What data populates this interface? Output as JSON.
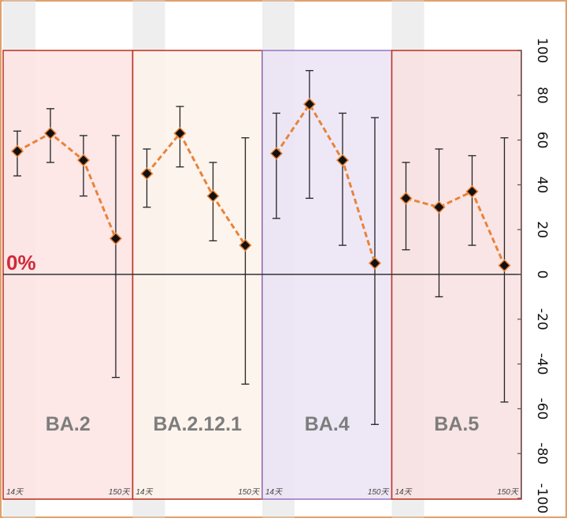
{
  "chart_data": {
    "type": "line",
    "y_axis": {
      "ylim": [
        -100,
        100
      ],
      "ticks": [
        100,
        80,
        60,
        40,
        20,
        0,
        -20,
        -40,
        -60,
        -80,
        -100
      ],
      "tick_labels": [
        "100",
        "80",
        "60",
        "40",
        "20",
        "0",
        "-20",
        "-40",
        "-60",
        "-80",
        "-100"
      ],
      "rotated_labels": true,
      "position": "right"
    },
    "zero_line_label": "0%",
    "x_corner_labels": {
      "start": "14天",
      "end": "150天"
    },
    "panels": [
      {
        "name": "BA.2",
        "background": "#fde3e3",
        "border": "#c0392b",
        "points": [
          {
            "y": 55,
            "low": 44,
            "high": 64
          },
          {
            "y": 63,
            "low": 50,
            "high": 74
          },
          {
            "y": 51,
            "low": 35,
            "high": 62
          },
          {
            "y": 16,
            "low": -46,
            "high": 62
          }
        ]
      },
      {
        "name": "BA.2.12.1",
        "background": "#fdf2ea",
        "border": "#c0392b",
        "points": [
          {
            "y": 45,
            "low": 30,
            "high": 56
          },
          {
            "y": 63,
            "low": 48,
            "high": 75
          },
          {
            "y": 35,
            "low": 15,
            "high": 50
          },
          {
            "y": 13,
            "low": -49,
            "high": 61
          }
        ]
      },
      {
        "name": "BA.4",
        "background": "#ebe4f4",
        "border": "#9a7cc4",
        "points": [
          {
            "y": 54,
            "low": 25,
            "high": 72
          },
          {
            "y": 76,
            "low": 34,
            "high": 91
          },
          {
            "y": 51,
            "low": 13,
            "high": 72
          },
          {
            "y": 5,
            "low": -67,
            "high": 70
          }
        ]
      },
      {
        "name": "BA.5",
        "background": "#f8e0e0",
        "border": "#c0392b",
        "points": [
          {
            "y": 34,
            "low": 11,
            "high": 50
          },
          {
            "y": 30,
            "low": -10,
            "high": 56
          },
          {
            "y": 37,
            "low": 13,
            "high": 53
          },
          {
            "y": 4,
            "low": -57,
            "high": 61
          }
        ]
      }
    ],
    "colors": {
      "line": "#e8833a",
      "marker": "#111111",
      "error_bar": "#222222",
      "zero_line": "#333333",
      "column_shade": "#d9d9d9",
      "frame": "#e0a06a"
    },
    "grid": false,
    "legend": "none"
  }
}
